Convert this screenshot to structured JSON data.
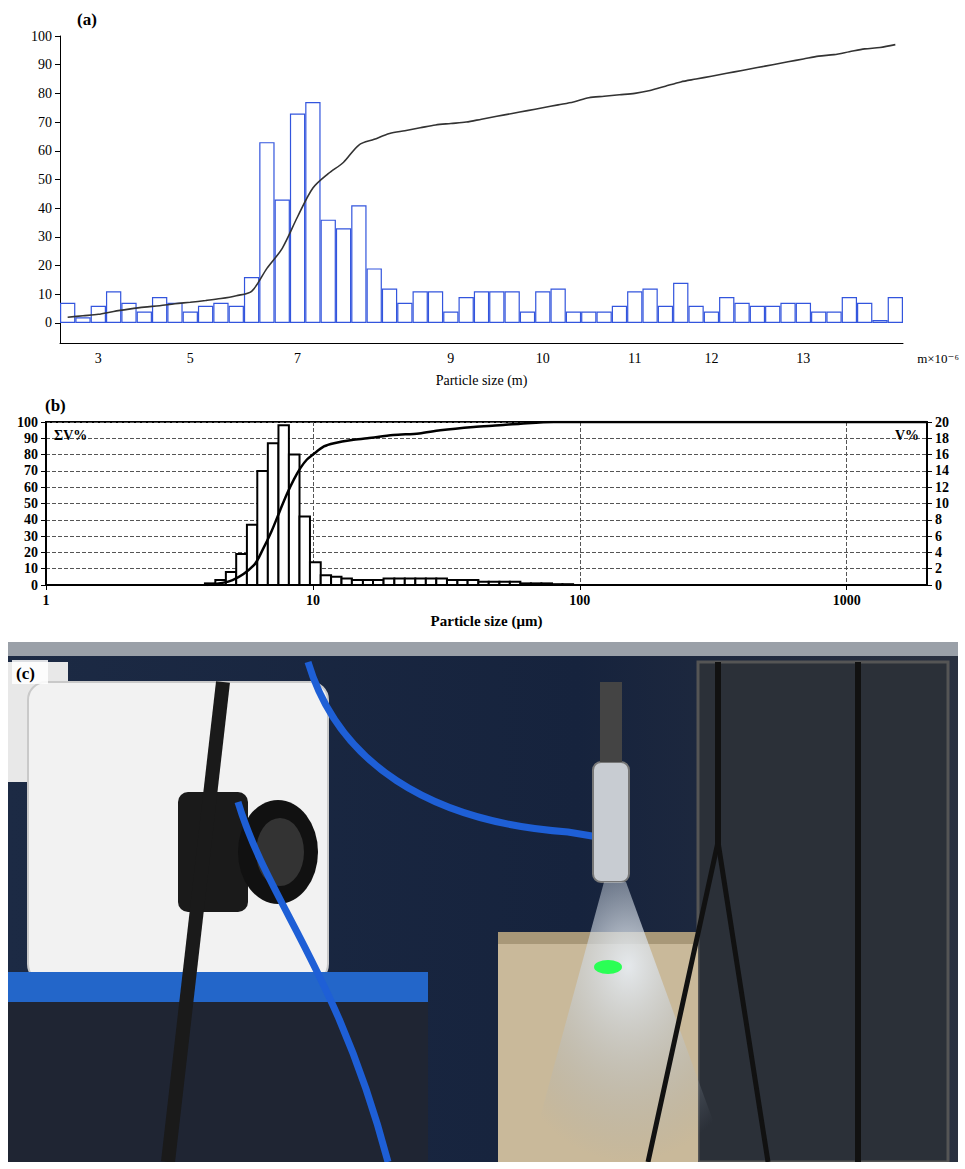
{
  "chart_data": [
    {
      "type": "bar",
      "title": "(a)",
      "xlabel": "Particle size (m)",
      "annotations": [
        "m×10⁻⁶"
      ],
      "categories": [
        null,
        null,
        "3",
        null,
        null,
        null,
        null,
        null,
        "5",
        null,
        null,
        null,
        null,
        null,
        null,
        "7",
        null,
        null,
        null,
        null,
        null,
        null,
        null,
        null,
        null,
        "9",
        null,
        null,
        null,
        null,
        null,
        "10",
        null,
        null,
        null,
        null,
        null,
        "11",
        null,
        null,
        null,
        null,
        "12",
        null,
        null,
        null,
        null,
        null,
        "13",
        null,
        null,
        null,
        null,
        null,
        null
      ],
      "series": [
        {
          "type": "bar",
          "color": "#3355dd",
          "values": [
            7,
            2,
            6,
            11,
            7,
            4,
            9,
            7,
            4,
            6,
            7,
            6,
            16,
            63,
            43,
            73,
            77,
            36,
            33,
            41,
            19,
            12,
            7,
            11,
            11,
            4,
            9,
            11,
            11,
            11,
            4,
            11,
            12,
            4,
            4,
            4,
            6,
            11,
            12,
            6,
            14,
            6,
            4,
            9,
            7,
            6,
            6,
            7,
            7,
            4,
            4,
            9,
            7,
            1,
            9
          ]
        },
        {
          "type": "line",
          "color": "#333333",
          "values": [
            2,
            2.5,
            3,
            4,
            4.8,
            5.5,
            6,
            6.7,
            7.2,
            7.8,
            8.5,
            9.5,
            11,
            19,
            26,
            37,
            47,
            52,
            56,
            62,
            64,
            66,
            67,
            68,
            69,
            69.5,
            70,
            71,
            72,
            73,
            74,
            75,
            76,
            77,
            78.5,
            79,
            79.5,
            80,
            81,
            82.5,
            84,
            85,
            86,
            87,
            88,
            89,
            90,
            91,
            92,
            93,
            93.5,
            94.5,
            95.5,
            96,
            97
          ]
        }
      ],
      "ylim": [
        -7,
        100
      ],
      "yticks": [
        0,
        10,
        20,
        30,
        40,
        50,
        60,
        70,
        80,
        90,
        100
      ],
      "grid": false
    },
    {
      "type": "bar",
      "title": "(b)",
      "log": "x",
      "xlabel": "Particle size (μm)",
      "ylabel": "ΣV%",
      "y2label": "V%",
      "bins": [
        3.94,
        4.31,
        4.72,
        5.16,
        5.66,
        6.19,
        6.78,
        7.43,
        8.13,
        8.91,
        9.75,
        10.7,
        11.7,
        12.8,
        14.0,
        15.4,
        16.8,
        18.4,
        20.2,
        22.1,
        24.2,
        26.5,
        29.0,
        31.8,
        34.8,
        38.0,
        41.7,
        45.6,
        50.0,
        54.7,
        59.9,
        65.6,
        71.8,
        78.7,
        86.1,
        94.4
      ],
      "series": [
        {
          "type": "bar",
          "axis": "y2",
          "color": "#000000",
          "values": [
            0.2,
            0.6,
            1.6,
            3.8,
            7.4,
            14,
            17.4,
            19.6,
            16,
            8.4,
            2.8,
            1.2,
            1,
            0.8,
            0.6,
            0.6,
            0.6,
            0.8,
            0.8,
            0.8,
            0.8,
            0.8,
            0.8,
            0.6,
            0.6,
            0.6,
            0.4,
            0.4,
            0.4,
            0.4,
            0.2,
            0.2,
            0.2,
            0.1,
            0.1
          ]
        },
        {
          "type": "line",
          "color": "#000000",
          "x": [
            4,
            5,
            6,
            6.5,
            7,
            7.5,
            8,
            8.5,
            9,
            9.5,
            10,
            11,
            12,
            14,
            16,
            20,
            25,
            30,
            40,
            50,
            60,
            80,
            100,
            2000
          ],
          "values": [
            0,
            3,
            12,
            22,
            33,
            45,
            56,
            65,
            72,
            77,
            80,
            85,
            87,
            89,
            90,
            92,
            93,
            95,
            97,
            98,
            99,
            100,
            100,
            100
          ]
        }
      ],
      "xlim": [
        1,
        2000
      ],
      "xticks": [
        1,
        10,
        100,
        1000
      ],
      "ylim": [
        0,
        100
      ],
      "yticks": [
        0,
        10,
        20,
        30,
        40,
        50,
        60,
        70,
        80,
        90,
        100
      ],
      "y2lim": [
        0,
        20
      ],
      "y2ticks": [
        0,
        2,
        4,
        6,
        8,
        10,
        12,
        14,
        16,
        18,
        20
      ],
      "grid": true
    }
  ],
  "photo": {
    "label": "(c)"
  }
}
